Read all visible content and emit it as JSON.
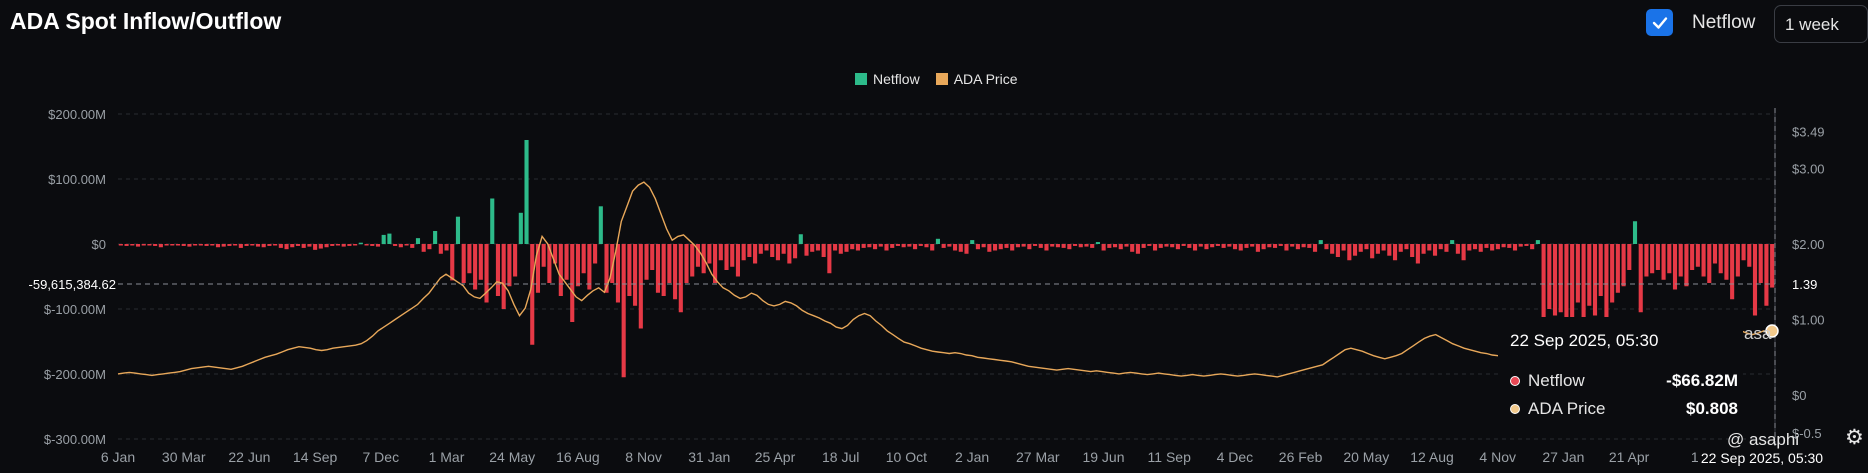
{
  "header": {
    "title": "ADA Spot Inflow/Outflow",
    "netflow_toggle_label": "Netflow",
    "netflow_checked": true,
    "period": "1 week"
  },
  "legend": [
    {
      "label": "Netflow",
      "color": "#2dbb8a"
    },
    {
      "label": "ADA Price",
      "color": "#e8a85a"
    }
  ],
  "crosshair": {
    "left_value": "-59,615,384.62",
    "right_value": "1.39",
    "x_label": "22 Sep 2025, 05:30"
  },
  "tooltip": {
    "date": "22 Sep 2025, 05:30",
    "rows": [
      {
        "name": "Netflow",
        "value": "-$66.82M",
        "color": "#e84855"
      },
      {
        "name": "ADA Price",
        "value": "$0.808",
        "color": "#f2c98b"
      }
    ]
  },
  "watermark": "@ asaphi",
  "price_marker_text": "asa",
  "colors": {
    "inflow": "#2dbb8a",
    "outflow": "#e63946",
    "price": "#e8a85a",
    "background": "#0b0c0f",
    "grid": "#2a2c31"
  },
  "chart_data": {
    "type": "bar",
    "title": "ADA Spot Inflow/Outflow",
    "x_ticks": [
      "6 Jan",
      "30 Mar",
      "22 Jun",
      "14 Sep",
      "7 Dec",
      "1 Mar",
      "24 May",
      "16 Aug",
      "8 Nov",
      "31 Jan",
      "25 Apr",
      "18 Jul",
      "10 Oct",
      "2 Jan",
      "27 Mar",
      "19 Jun",
      "11 Sep",
      "4 Dec",
      "26 Feb",
      "20 May",
      "12 Aug",
      "4 Nov",
      "27 Jan",
      "21 Apr",
      "1"
    ],
    "y_left_ticks": [
      "$200.00M",
      "$100.00M",
      "$0",
      "$-100.00M",
      "$-200.00M",
      "$-300.00M"
    ],
    "y_left_values": [
      200,
      100,
      0,
      -100,
      -200,
      -300
    ],
    "ylim_left": [
      -300,
      200
    ],
    "y_right_ticks": [
      "$3.49",
      "$3.00",
      "$2.00",
      "$1.00",
      "$0",
      "$-0.5"
    ],
    "y_right_values": [
      3.49,
      3.0,
      2.0,
      1.0,
      0,
      -0.5
    ],
    "ylim_right": [
      -0.5,
      3.49
    ],
    "legend_position": "top-center",
    "grid": true,
    "series": [
      {
        "name": "Netflow",
        "unit": "$M",
        "values": [
          -2,
          -3,
          -2,
          -4,
          -2,
          -1,
          -3,
          -5,
          -2,
          -1,
          -2,
          -3,
          -4,
          -2,
          -1,
          -3,
          -2,
          -5,
          -4,
          -3,
          -2,
          -6,
          -3,
          -2,
          -4,
          -5,
          -3,
          -2,
          -6,
          -8,
          -5,
          -3,
          -6,
          -4,
          -9,
          -7,
          -5,
          -3,
          -2,
          -4,
          -3,
          -2,
          2,
          -2,
          -3,
          -4,
          14,
          16,
          -3,
          -5,
          -2,
          -6,
          9,
          -12,
          -8,
          20,
          -15,
          -10,
          -56,
          42,
          -60,
          -45,
          -70,
          -55,
          -90,
          70,
          -80,
          -100,
          -65,
          -50,
          48,
          160,
          -155,
          -75,
          -35,
          -60,
          -30,
          -80,
          -55,
          -120,
          -65,
          -45,
          -70,
          -30,
          58,
          -75,
          -60,
          -90,
          -205,
          -80,
          -95,
          -130,
          -55,
          -40,
          -75,
          -80,
          -60,
          -85,
          -105,
          -60,
          -50,
          -35,
          -45,
          -30,
          -60,
          -25,
          -40,
          -35,
          -50,
          -25,
          -20,
          -30,
          -15,
          -10,
          -20,
          -25,
          -15,
          -30,
          -22,
          15,
          -18,
          -12,
          -10,
          -20,
          -45,
          -10,
          -15,
          -12,
          -8,
          -10,
          -6,
          -5,
          -8,
          -4,
          -10,
          -6,
          -3,
          -5,
          -4,
          -8,
          -3,
          -5,
          -10,
          8,
          -6,
          -4,
          -10,
          -12,
          -15,
          6,
          -8,
          -5,
          -12,
          -10,
          -8,
          -6,
          -10,
          -5,
          -4,
          -8,
          -3,
          -6,
          -10,
          -4,
          -5,
          -6,
          -8,
          -3,
          -5,
          -4,
          -6,
          3,
          -10,
          -6,
          -5,
          -8,
          -4,
          -12,
          -15,
          -6,
          -3,
          -10,
          -6,
          -4,
          -5,
          -8,
          -3,
          -6,
          -10,
          -4,
          -8,
          -5,
          -3,
          -6,
          -4,
          -8,
          -10,
          -6,
          -4,
          -12,
          -8,
          -5,
          -6,
          -3,
          -10,
          -4,
          -8,
          -5,
          -6,
          -12,
          6,
          -8,
          -15,
          -20,
          -10,
          -25,
          -18,
          -12,
          -8,
          -22,
          -15,
          -10,
          -18,
          -25,
          -12,
          -8,
          -20,
          -30,
          -15,
          -10,
          -18,
          -8,
          -12,
          6,
          -15,
          -25,
          -10,
          -8,
          -12,
          -6,
          -10,
          -8,
          -5,
          -6,
          -10,
          -4,
          -3,
          -8,
          6,
          -120,
          -100,
          -110,
          -105,
          -130,
          -140,
          -90,
          -120,
          -95,
          -110,
          -80,
          -125,
          -90,
          -75,
          -65,
          -40,
          35,
          -105,
          -50,
          -45,
          -40,
          -55,
          -45,
          -70,
          -50,
          -65,
          -40,
          -35,
          -50,
          -60,
          -30,
          -45,
          -55,
          -85,
          -50,
          -25,
          -35,
          -110,
          -60,
          -95,
          -67
        ]
      },
      {
        "name": "ADA Price",
        "unit": "$",
        "values": [
          0.28,
          0.29,
          0.3,
          0.29,
          0.28,
          0.27,
          0.26,
          0.27,
          0.28,
          0.29,
          0.3,
          0.31,
          0.33,
          0.35,
          0.36,
          0.37,
          0.38,
          0.37,
          0.36,
          0.35,
          0.34,
          0.36,
          0.38,
          0.41,
          0.44,
          0.47,
          0.5,
          0.52,
          0.54,
          0.57,
          0.6,
          0.62,
          0.64,
          0.63,
          0.62,
          0.6,
          0.59,
          0.6,
          0.62,
          0.63,
          0.64,
          0.65,
          0.66,
          0.68,
          0.72,
          0.78,
          0.85,
          0.9,
          0.95,
          1.0,
          1.05,
          1.1,
          1.15,
          1.2,
          1.28,
          1.35,
          1.45,
          1.55,
          1.6,
          1.55,
          1.5,
          1.45,
          1.35,
          1.3,
          1.28,
          1.35,
          1.42,
          1.5,
          1.48,
          1.38,
          1.2,
          1.05,
          1.15,
          1.4,
          1.85,
          2.1,
          2.0,
          1.8,
          1.6,
          1.5,
          1.4,
          1.3,
          1.25,
          1.32,
          1.38,
          1.42,
          1.36,
          1.55,
          1.9,
          2.3,
          2.5,
          2.7,
          2.78,
          2.82,
          2.75,
          2.6,
          2.4,
          2.2,
          2.05,
          2.1,
          2.12,
          2.05,
          1.98,
          1.88,
          1.75,
          1.6,
          1.5,
          1.42,
          1.38,
          1.32,
          1.28,
          1.3,
          1.35,
          1.32,
          1.25,
          1.2,
          1.18,
          1.2,
          1.24,
          1.22,
          1.18,
          1.12,
          1.08,
          1.05,
          1.02,
          0.98,
          0.95,
          0.9,
          0.88,
          0.92,
          1.0,
          1.05,
          1.08,
          1.05,
          0.98,
          0.92,
          0.85,
          0.8,
          0.75,
          0.7,
          0.68,
          0.65,
          0.62,
          0.6,
          0.58,
          0.57,
          0.56,
          0.55,
          0.56,
          0.55,
          0.53,
          0.52,
          0.5,
          0.49,
          0.48,
          0.47,
          0.46,
          0.45,
          0.44,
          0.42,
          0.4,
          0.38,
          0.37,
          0.36,
          0.35,
          0.34,
          0.33,
          0.34,
          0.35,
          0.34,
          0.33,
          0.32,
          0.31,
          0.32,
          0.31,
          0.3,
          0.29,
          0.28,
          0.29,
          0.3,
          0.29,
          0.28,
          0.27,
          0.28,
          0.29,
          0.28,
          0.27,
          0.26,
          0.25,
          0.26,
          0.27,
          0.26,
          0.25,
          0.26,
          0.27,
          0.28,
          0.27,
          0.26,
          0.25,
          0.26,
          0.27,
          0.28,
          0.27,
          0.26,
          0.25,
          0.24,
          0.26,
          0.28,
          0.3,
          0.32,
          0.34,
          0.36,
          0.38,
          0.4,
          0.45,
          0.5,
          0.55,
          0.6,
          0.62,
          0.6,
          0.58,
          0.55,
          0.52,
          0.5,
          0.48,
          0.5,
          0.52,
          0.55,
          0.6,
          0.65,
          0.7,
          0.75,
          0.78,
          0.8,
          0.76,
          0.72,
          0.68,
          0.65,
          0.62,
          0.6,
          0.58,
          0.56,
          0.55,
          0.53,
          0.52,
          0.5,
          0.48,
          0.46,
          0.45,
          0.47,
          0.5,
          0.52,
          0.55,
          0.6,
          0.62,
          0.6,
          0.58,
          0.56,
          0.55,
          0.54,
          0.52,
          0.5,
          0.48,
          0.46,
          0.45,
          0.44,
          0.45,
          0.47,
          0.5,
          0.55,
          0.6,
          0.65,
          0.7,
          0.75,
          0.8,
          0.85,
          0.9,
          0.92,
          0.95,
          0.93,
          0.9,
          0.88,
          0.86,
          0.85,
          0.88,
          0.9,
          0.88,
          0.85,
          0.82,
          0.8,
          0.82,
          0.85,
          0.83,
          0.808
        ]
      }
    ]
  }
}
